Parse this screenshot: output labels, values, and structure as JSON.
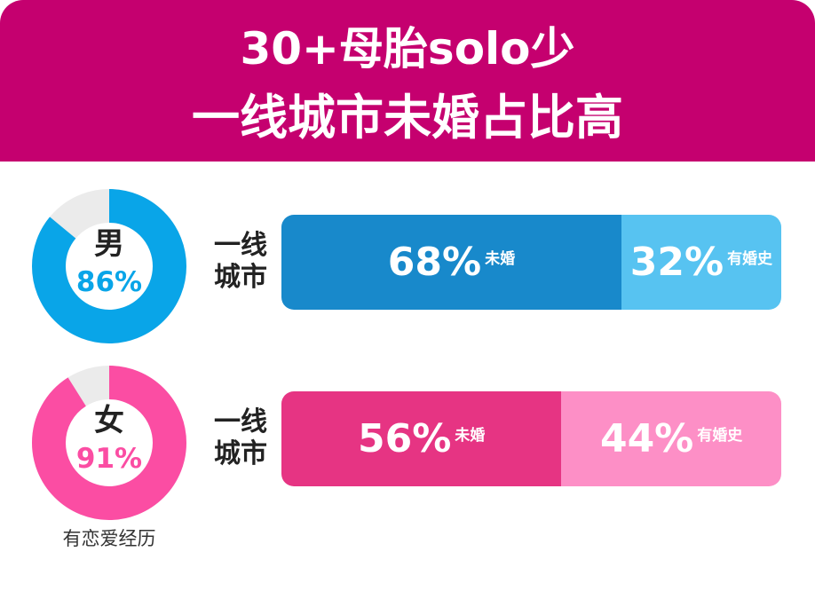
{
  "header": {
    "title_line1": "30+母胎solo少",
    "title_line2": "一线城市未婚占比高"
  },
  "colors": {
    "banner": "#c5006f",
    "male_main": "#09a5e8",
    "male_bar_unmarried": "#1889cb",
    "male_bar_married": "#57c3f1",
    "female_main": "#fb4da3",
    "female_bar_unmarried": "#e63483",
    "female_bar_married": "#fd8fc6",
    "ring_rest": "#ebebeb"
  },
  "rows": [
    {
      "id": "male",
      "gender": "男",
      "dating_pct_label": "86%",
      "dating_pct": 86,
      "city_line1": "一线",
      "city_line2": "城市",
      "unmarried_pct": "68%",
      "unmarried_label": "未婚",
      "married_pct": "32%",
      "married_label": "有婚史"
    },
    {
      "id": "female",
      "gender": "女",
      "dating_pct_label": "91%",
      "dating_pct": 91,
      "city_line1": "一线",
      "city_line2": "城市",
      "unmarried_pct": "56%",
      "unmarried_label": "未婚",
      "married_pct": "44%",
      "married_label": "有婚史"
    }
  ],
  "footnote": "有恋爱经历",
  "chart_data": [
    {
      "type": "pie",
      "categories": [
        "男",
        "女"
      ],
      "values": [
        86,
        91
      ],
      "annotations": [
        "有恋爱经历"
      ]
    },
    {
      "type": "bar",
      "categories": [
        "男 一线城市",
        "女 一线城市"
      ],
      "series": [
        {
          "name": "未婚",
          "values": [
            68,
            56
          ]
        },
        {
          "name": "有婚史",
          "values": [
            32,
            44
          ]
        }
      ]
    }
  ]
}
